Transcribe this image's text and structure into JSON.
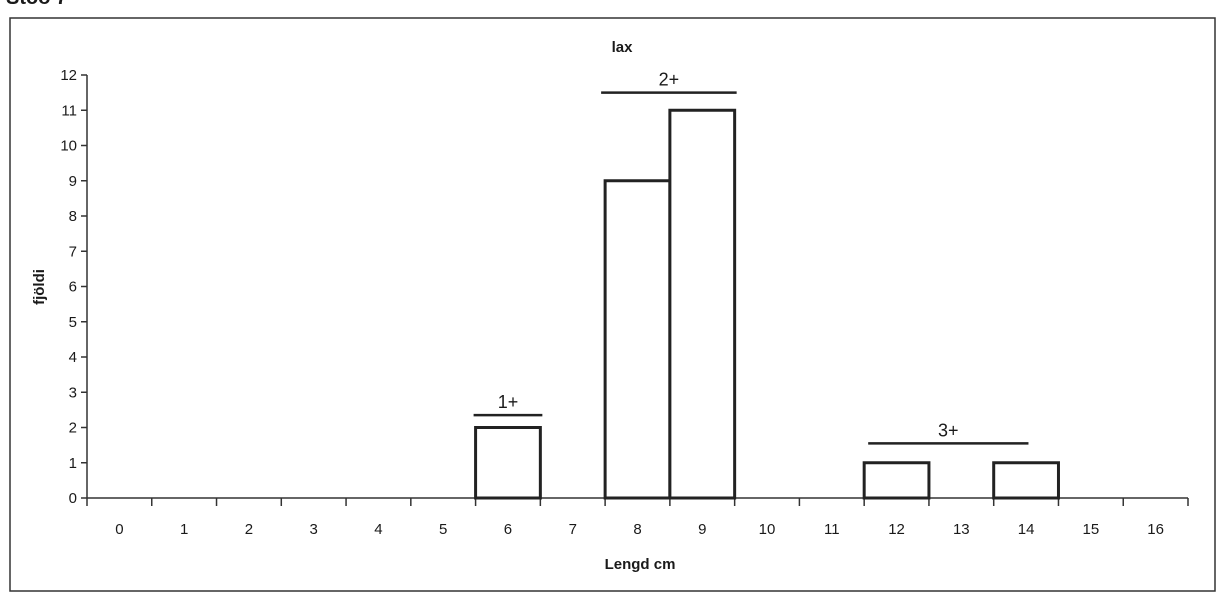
{
  "page_header": "Stöð 7",
  "chart_data": {
    "type": "bar",
    "title": "lax",
    "xlabel": "Lengd cm",
    "ylabel": "fjöldi",
    "categories": [
      "0",
      "1",
      "2",
      "3",
      "4",
      "5",
      "6",
      "7",
      "8",
      "9",
      "10",
      "11",
      "12",
      "13",
      "14",
      "15",
      "16"
    ],
    "values": [
      0,
      0,
      0,
      0,
      0,
      0,
      2,
      0,
      9,
      11,
      0,
      0,
      1,
      0,
      1,
      0,
      0
    ],
    "ylim": [
      0,
      12
    ],
    "yticks": [
      0,
      1,
      2,
      3,
      4,
      5,
      6,
      7,
      8,
      9,
      10,
      11,
      12
    ],
    "grid": false,
    "legend": "none",
    "annotations": [
      {
        "text": "1+",
        "from": "6",
        "to": "6",
        "level": 2.35
      },
      {
        "text": "2+",
        "from": "8",
        "to": "9",
        "level": 11.5
      },
      {
        "text": "3+",
        "from": "12",
        "to": "14",
        "level": 1.55
      }
    ],
    "colors": {
      "bar_fill": "#ffffff",
      "bar_stroke": "#222222",
      "axis": "#333333",
      "text": "#1a1a1a"
    }
  }
}
